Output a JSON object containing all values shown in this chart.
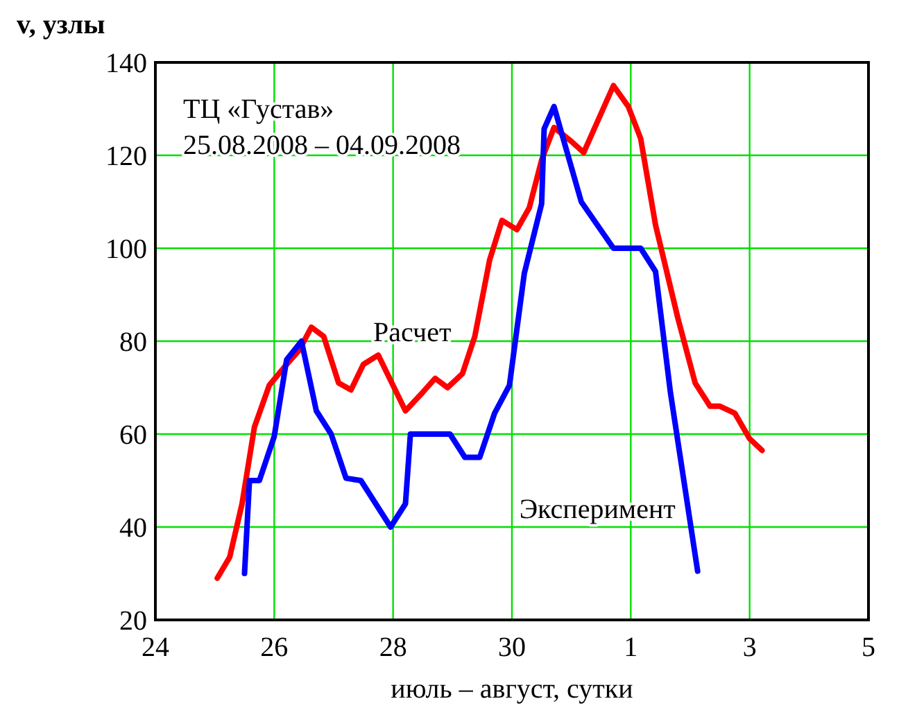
{
  "chart_data": {
    "type": "line",
    "ylabel": "v, узлы",
    "xlabel": "июль – август, сутки",
    "annotations": [
      "ТЦ «Густав»",
      "25.08.2008 – 04.09.2008"
    ],
    "xlim": [
      "--08-24",
      "--09-05"
    ],
    "xticks": [
      {
        "value": "--08-24",
        "label": "24"
      },
      {
        "value": "--08-26",
        "label": "26"
      },
      {
        "value": "--08-28",
        "label": "28"
      },
      {
        "value": "--08-30",
        "label": "30"
      },
      {
        "value": "--09-01",
        "label": "1"
      },
      {
        "value": "--09-03",
        "label": "3"
      },
      {
        "value": "--09-05",
        "label": "5"
      }
    ],
    "ylim": [
      20,
      140
    ],
    "yticks": [
      20,
      40,
      60,
      80,
      100,
      120,
      140
    ],
    "grid": true,
    "line_style": "solid",
    "series": [
      {
        "name": "Расчет",
        "color": "#ff0000",
        "x": [
          "--08-25T01:00",
          "--08-25T06:00",
          "--08-25T11:00",
          "--08-25T16:00",
          "--08-25T22:00",
          "--08-26T05:00",
          "--08-26T10:00",
          "--08-26T15:00",
          "--08-26T20:00",
          "--08-27T02:00",
          "--08-27T07:00",
          "--08-27T12:00",
          "--08-27T18:00",
          "--08-28T05:00",
          "--08-28T12:00",
          "--08-28T17:00",
          "--08-28T22:00",
          "--08-29T04:00",
          "--08-29T09:00",
          "--08-29T15:00",
          "--08-29T20:00",
          "--08-30T02:00",
          "--08-30T07:00",
          "--08-30T12:00",
          "--08-30T17:00",
          "--08-31T00:00",
          "--08-31T05:00",
          "--08-31T17:00",
          "--08-31T23:00",
          "--09-01T04:00",
          "--09-01T10:00",
          "--09-01T19:00",
          "--09-02T02:00",
          "--09-02T08:00",
          "--09-02T12:00",
          "--09-02T18:00",
          "--09-03T00:00",
          "--09-03T05:00"
        ],
        "values": [
          29,
          33.5,
          45,
          61.5,
          70.5,
          75,
          78,
          83,
          81,
          71,
          69.5,
          75,
          77,
          65,
          69,
          72,
          70,
          73,
          81,
          97.5,
          106,
          104,
          108.7,
          119,
          126,
          123,
          120.6,
          135,
          130.5,
          123.6,
          105,
          85,
          71,
          66,
          66,
          64.5,
          59,
          56.5
        ]
      },
      {
        "name": "Эксперимент",
        "color": "#0000ff",
        "x": [
          "--08-25T12:00",
          "--08-25T14:00",
          "--08-25T18:00",
          "--08-26T00:00",
          "--08-26T05:00",
          "--08-26T11:00",
          "--08-26T17:00",
          "--08-26T23:00",
          "--08-27T05:00",
          "--08-27T11:00",
          "--08-27T23:00",
          "--08-28T05:00",
          "--08-28T07:00",
          "--08-28T23:00",
          "--08-29T05:00",
          "--08-29T11:00",
          "--08-29T17:00",
          "--08-29T23:00",
          "--08-30T05:00",
          "--08-30T12:00",
          "--08-30T13:00",
          "--08-30T17:00",
          "--08-31T04:00",
          "--08-31T17:00",
          "--09-01T04:00",
          "--09-01T10:00",
          "--09-01T16:00",
          "--09-02T03:00"
        ],
        "values": [
          30,
          50,
          50,
          59.5,
          76,
          80,
          65,
          60,
          50.5,
          50,
          40,
          45,
          60,
          60,
          55,
          55,
          64.5,
          70.5,
          94.6,
          109.6,
          125.7,
          130.5,
          110,
          100,
          100,
          95,
          69,
          30.5
        ]
      }
    ]
  }
}
